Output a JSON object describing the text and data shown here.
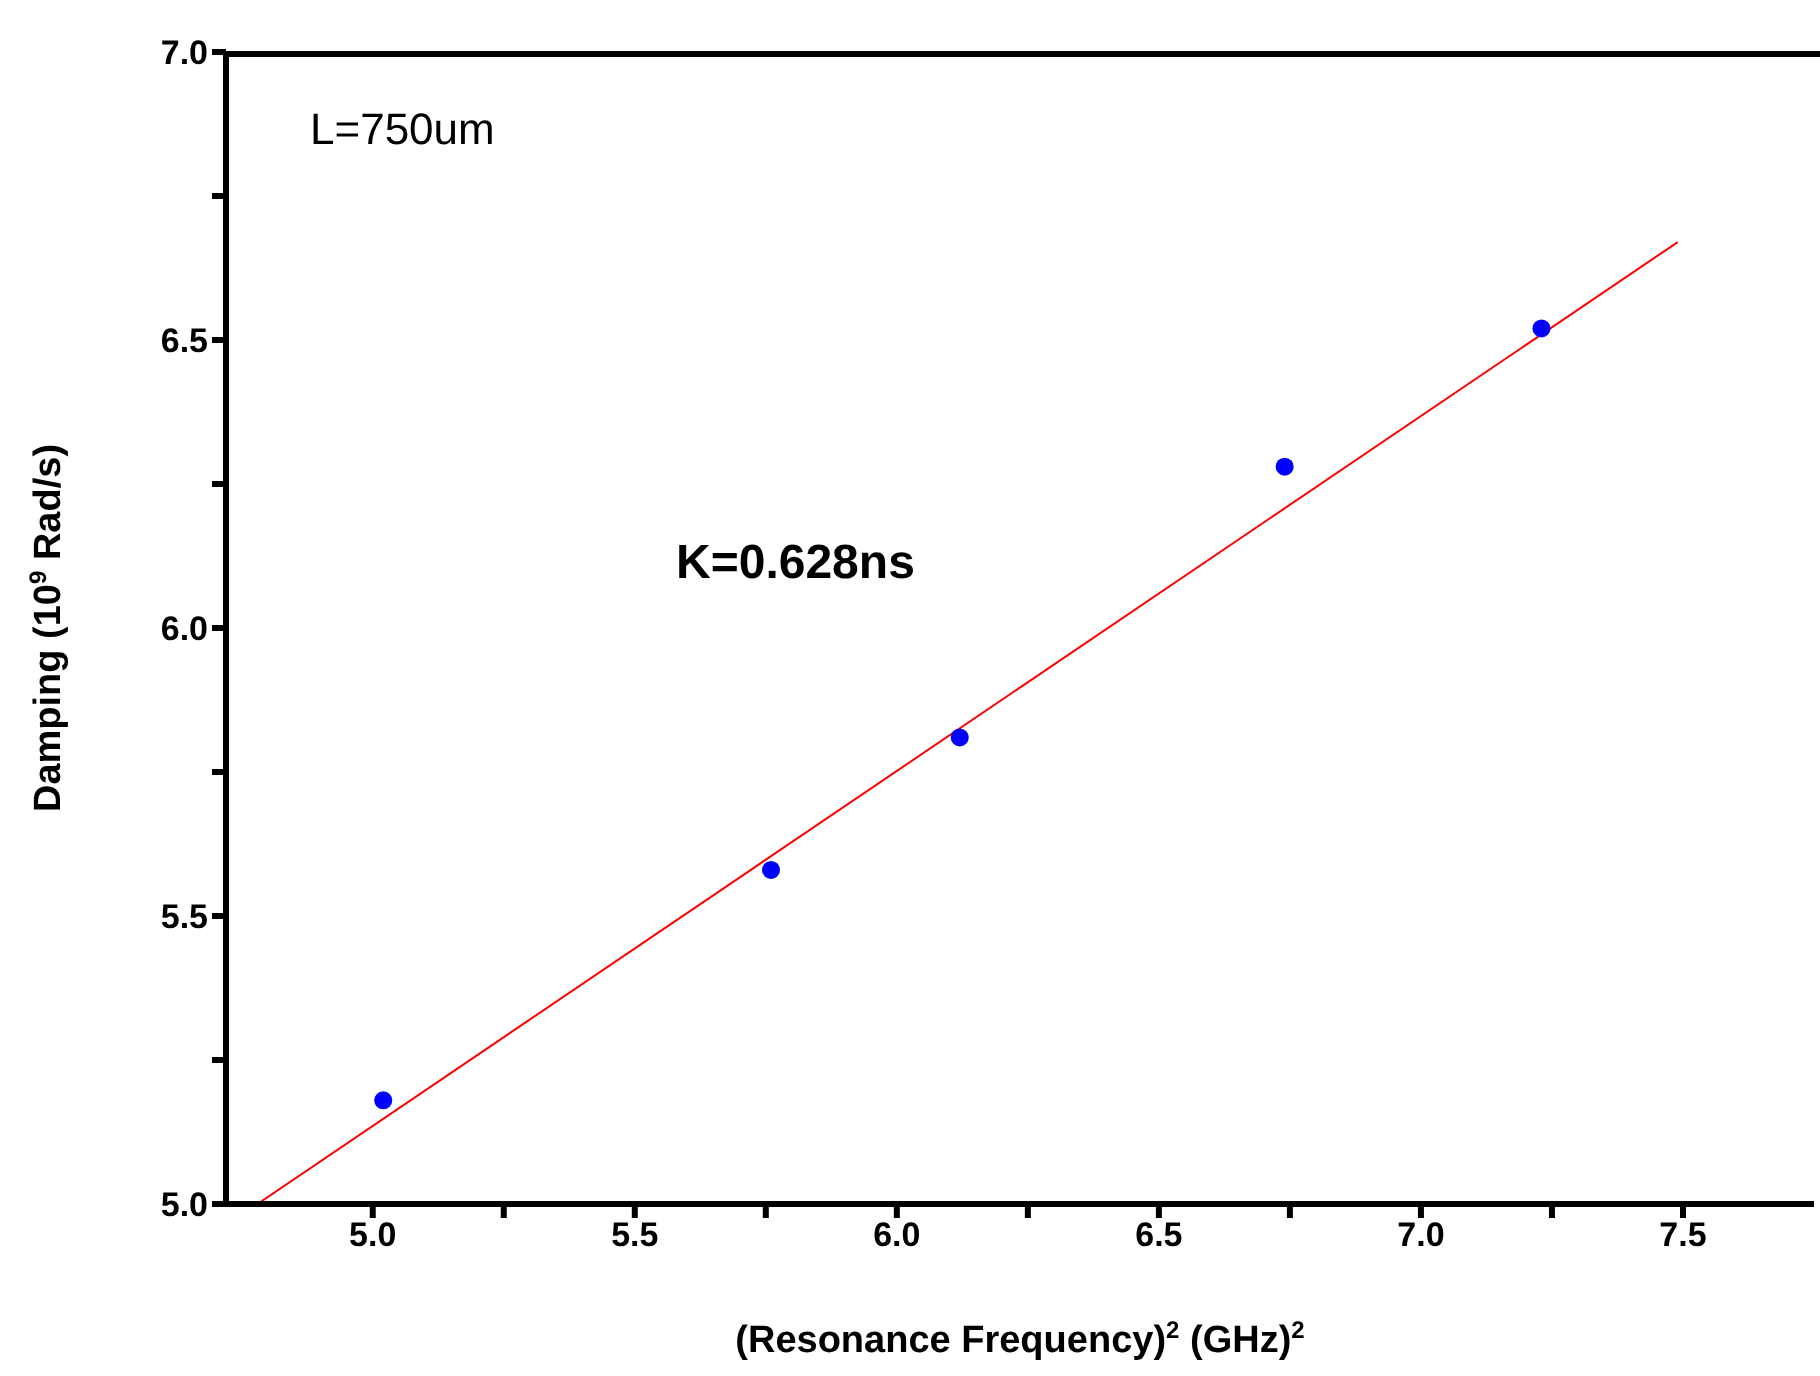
{
  "chart_data": {
    "type": "scatter",
    "xlabel": "(Resonance Frequency)$^{2}$ (GHz)$^{2}$",
    "ylabel": "Damping (10$^{9}$ Rad/s)",
    "annotations": [
      "L=750um",
      "K=0.628ns"
    ],
    "xlim": [
      4.72,
      7.75
    ],
    "xticks": [
      {
        "value": 5,
        "label": "5.0"
      },
      {
        "value": 5.25,
        "label": null
      },
      5.5,
      {
        "value": 5.75,
        "label": null
      },
      {
        "value": 6,
        "label": "6.0"
      },
      {
        "value": 6.25,
        "label": null
      },
      6.5,
      {
        "value": 6.75,
        "label": null
      },
      {
        "value": 7,
        "label": "7.0"
      },
      {
        "value": 7.25,
        "label": null
      },
      7.5
    ],
    "ylim": [
      5.0,
      7.0
    ],
    "yticks": [
      {
        "value": 5,
        "label": "5.0"
      },
      {
        "value": 5.25,
        "label": null
      },
      5.5,
      {
        "value": 5.75,
        "label": null
      },
      {
        "value": 6,
        "label": "6.0"
      },
      {
        "value": 6.25,
        "label": null
      },
      6.5,
      {
        "value": 6.75,
        "label": null
      },
      {
        "value": 7,
        "label": "7.0"
      }
    ],
    "line_style": "solid",
    "series": [
      {
        "color": "#0000ff",
        "marker": "circle",
        "x": [
          5.02,
          5.76,
          6.12,
          6.74,
          7.23
        ],
        "values": [
          5.18,
          5.58,
          5.81,
          6.28,
          6.52
        ]
      },
      {
        "type": "line",
        "color": "#ff0000",
        "x": [
          4.78,
          7.49
        ],
        "values": [
          5.0,
          6.67
        ]
      }
    ]
  }
}
